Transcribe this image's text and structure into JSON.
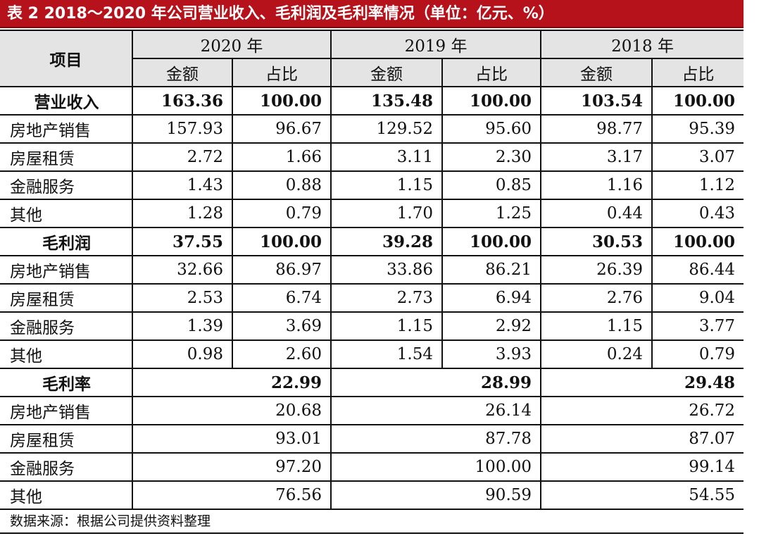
{
  "title": "表 2   2018～2020 年公司营业收入、毛利润及毛利率情况（单位：亿元、%）",
  "header": {
    "item": "项目",
    "years": [
      "2020 年",
      "2019 年",
      "2018 年"
    ],
    "amount": "金额",
    "share": "占比"
  },
  "rows": [
    {
      "name": "营业收入",
      "total": true,
      "values": [
        "163.36",
        "100.00",
        "135.48",
        "100.00",
        "103.54",
        "100.00"
      ]
    },
    {
      "name": "房地产销售",
      "values": [
        "157.93",
        "96.67",
        "129.52",
        "95.60",
        "98.77",
        "95.39"
      ]
    },
    {
      "name": "房屋租赁",
      "values": [
        "2.72",
        "1.66",
        "3.11",
        "2.30",
        "3.17",
        "3.07"
      ]
    },
    {
      "name": "金融服务",
      "values": [
        "1.43",
        "0.88",
        "1.15",
        "0.85",
        "1.16",
        "1.12"
      ]
    },
    {
      "name": "其他",
      "values": [
        "1.28",
        "0.79",
        "1.70",
        "1.25",
        "0.44",
        "0.43"
      ]
    },
    {
      "name": "毛利润",
      "total": true,
      "values": [
        "37.55",
        "100.00",
        "39.28",
        "100.00",
        "30.53",
        "100.00"
      ]
    },
    {
      "name": "房地产销售",
      "values": [
        "32.66",
        "86.97",
        "33.86",
        "86.21",
        "26.39",
        "86.44"
      ]
    },
    {
      "name": "房屋租赁",
      "values": [
        "2.53",
        "6.74",
        "2.73",
        "6.94",
        "2.76",
        "9.04"
      ]
    },
    {
      "name": "金融服务",
      "values": [
        "1.39",
        "3.69",
        "1.15",
        "2.92",
        "1.15",
        "3.77"
      ]
    },
    {
      "name": "其他",
      "values": [
        "0.98",
        "2.60",
        "1.54",
        "3.93",
        "0.24",
        "0.79"
      ]
    },
    {
      "name": "毛利率",
      "total": true,
      "merged": true,
      "values": [
        "22.99",
        "28.99",
        "29.48"
      ]
    },
    {
      "name": "房地产销售",
      "merged": true,
      "values": [
        "20.68",
        "26.14",
        "26.72"
      ]
    },
    {
      "name": "房屋租赁",
      "merged": true,
      "values": [
        "93.01",
        "87.78",
        "87.07"
      ]
    },
    {
      "name": "金融服务",
      "merged": true,
      "values": [
        "97.20",
        "100.00",
        "99.14"
      ]
    },
    {
      "name": "其他",
      "merged": true,
      "values": [
        "76.56",
        "90.59",
        "54.55"
      ]
    }
  ],
  "footer": "数据来源：根据公司提供资料整理",
  "colors": {
    "title_bg": "#b5121b",
    "header_bg": "#e4e4e4"
  }
}
